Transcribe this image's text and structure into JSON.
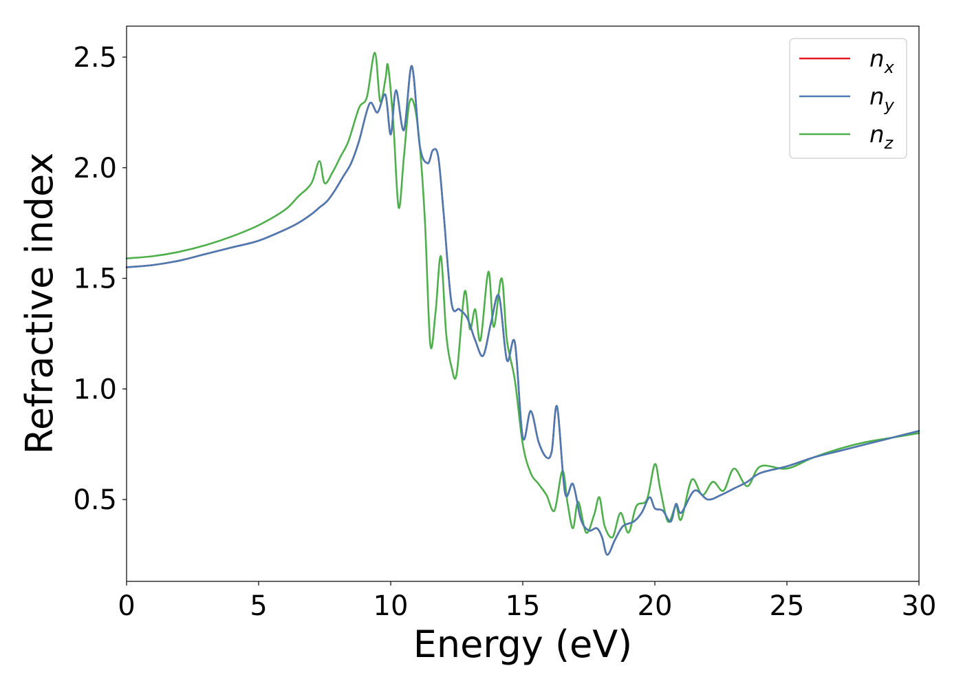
{
  "chart_data": {
    "type": "line",
    "title": "",
    "xlabel": "Energy (eV)",
    "ylabel": "Refractive index",
    "xlim": [
      0,
      30
    ],
    "ylim": [
      0.13,
      2.64
    ],
    "xticks": [
      0,
      5,
      10,
      15,
      20,
      25,
      30
    ],
    "xtick_labels": [
      "0",
      "5",
      "10",
      "15",
      "20",
      "25",
      "30"
    ],
    "yticks": [
      0.5,
      1.0,
      1.5,
      2.0,
      2.5
    ],
    "ytick_labels": [
      "0.5",
      "1.0",
      "1.5",
      "2.0",
      "2.5"
    ],
    "grid": false,
    "legend_position": "top-right",
    "series": [
      {
        "name": "n",
        "subscript": "x",
        "color": "#e41a1c",
        "x": [
          0,
          1,
          2,
          3,
          4,
          5,
          6,
          6.5,
          7,
          7.3,
          7.6,
          7.9,
          8.2,
          8.5,
          8.8,
          9.2,
          9.5,
          9.8,
          10.0,
          10.2,
          10.5,
          10.8,
          11.1,
          11.4,
          11.6,
          11.8,
          12.0,
          12.3,
          12.6,
          12.9,
          13.2,
          13.5,
          13.8,
          14.1,
          14.4,
          14.7,
          15.0,
          15.3,
          15.6,
          15.9,
          16.1,
          16.3,
          16.6,
          16.9,
          17.2,
          17.5,
          17.8,
          18.0,
          18.2,
          18.5,
          18.8,
          19.2,
          19.5,
          19.8,
          20.0,
          20.3,
          20.6,
          20.8,
          21.0,
          21.5,
          22.0,
          22.5,
          23.0,
          23.5,
          24.0,
          25.0,
          26.0,
          27.0,
          28.0,
          29.0,
          30.0
        ],
        "y": [
          1.55,
          1.56,
          1.58,
          1.61,
          1.64,
          1.67,
          1.72,
          1.75,
          1.79,
          1.82,
          1.85,
          1.9,
          1.96,
          2.02,
          2.12,
          2.29,
          2.25,
          2.33,
          2.15,
          2.35,
          2.17,
          2.46,
          2.1,
          2.02,
          2.08,
          2.05,
          1.8,
          1.39,
          1.36,
          1.32,
          1.22,
          1.15,
          1.3,
          1.42,
          1.13,
          1.21,
          0.78,
          0.9,
          0.76,
          0.69,
          0.72,
          0.92,
          0.53,
          0.57,
          0.41,
          0.36,
          0.37,
          0.33,
          0.25,
          0.32,
          0.38,
          0.4,
          0.44,
          0.51,
          0.46,
          0.45,
          0.4,
          0.48,
          0.44,
          0.54,
          0.5,
          0.52,
          0.55,
          0.58,
          0.62,
          0.65,
          0.69,
          0.72,
          0.75,
          0.78,
          0.81
        ]
      },
      {
        "name": "n",
        "subscript": "y",
        "color": "#4a7ab3",
        "x": [
          0,
          1,
          2,
          3,
          4,
          5,
          6,
          6.5,
          7,
          7.3,
          7.6,
          7.9,
          8.2,
          8.5,
          8.8,
          9.2,
          9.5,
          9.8,
          10.0,
          10.2,
          10.5,
          10.8,
          11.1,
          11.4,
          11.6,
          11.8,
          12.0,
          12.3,
          12.6,
          12.9,
          13.2,
          13.5,
          13.8,
          14.1,
          14.4,
          14.7,
          15.0,
          15.3,
          15.6,
          15.9,
          16.1,
          16.3,
          16.6,
          16.9,
          17.2,
          17.5,
          17.8,
          18.0,
          18.2,
          18.5,
          18.8,
          19.2,
          19.5,
          19.8,
          20.0,
          20.3,
          20.6,
          20.8,
          21.0,
          21.5,
          22.0,
          22.5,
          23.0,
          23.5,
          24.0,
          25.0,
          26.0,
          27.0,
          28.0,
          29.0,
          30.0
        ],
        "y": [
          1.55,
          1.56,
          1.58,
          1.61,
          1.64,
          1.67,
          1.72,
          1.75,
          1.79,
          1.82,
          1.85,
          1.9,
          1.96,
          2.02,
          2.12,
          2.29,
          2.25,
          2.33,
          2.15,
          2.35,
          2.17,
          2.46,
          2.1,
          2.02,
          2.08,
          2.05,
          1.8,
          1.39,
          1.36,
          1.32,
          1.22,
          1.15,
          1.3,
          1.42,
          1.13,
          1.21,
          0.78,
          0.9,
          0.76,
          0.69,
          0.72,
          0.92,
          0.53,
          0.57,
          0.41,
          0.36,
          0.37,
          0.33,
          0.25,
          0.32,
          0.38,
          0.4,
          0.44,
          0.51,
          0.46,
          0.45,
          0.4,
          0.48,
          0.44,
          0.54,
          0.5,
          0.52,
          0.55,
          0.58,
          0.62,
          0.65,
          0.69,
          0.72,
          0.75,
          0.78,
          0.81
        ]
      },
      {
        "name": "n",
        "subscript": "z",
        "color": "#4daf4a",
        "x": [
          0,
          1,
          2,
          3,
          4,
          5,
          6,
          6.5,
          7.0,
          7.3,
          7.5,
          7.8,
          8.1,
          8.4,
          8.8,
          9.1,
          9.4,
          9.6,
          9.8,
          9.9,
          10.1,
          10.3,
          10.5,
          10.7,
          10.9,
          11.1,
          11.3,
          11.5,
          11.7,
          11.9,
          12.1,
          12.3,
          12.5,
          12.8,
          13.0,
          13.2,
          13.4,
          13.7,
          13.9,
          14.2,
          14.4,
          14.7,
          15.0,
          15.3,
          15.6,
          15.9,
          16.2,
          16.5,
          16.7,
          16.9,
          17.1,
          17.4,
          17.7,
          17.9,
          18.1,
          18.4,
          18.7,
          19.0,
          19.3,
          19.7,
          20.0,
          20.2,
          20.5,
          20.8,
          21.0,
          21.4,
          21.8,
          22.2,
          22.6,
          23.0,
          23.5,
          24.0,
          25.0,
          26.0,
          27.0,
          28.0,
          29.0,
          30.0
        ],
        "y": [
          1.59,
          1.6,
          1.62,
          1.65,
          1.69,
          1.74,
          1.81,
          1.87,
          1.93,
          2.03,
          1.93,
          1.98,
          2.05,
          2.12,
          2.27,
          2.32,
          2.52,
          2.3,
          2.4,
          2.46,
          2.2,
          1.82,
          2.05,
          2.29,
          2.28,
          2.1,
          1.75,
          1.2,
          1.35,
          1.6,
          1.25,
          1.1,
          1.07,
          1.44,
          1.27,
          1.36,
          1.22,
          1.53,
          1.28,
          1.5,
          1.22,
          1.04,
          0.75,
          0.62,
          0.57,
          0.52,
          0.45,
          0.63,
          0.48,
          0.37,
          0.49,
          0.35,
          0.43,
          0.51,
          0.38,
          0.33,
          0.44,
          0.35,
          0.47,
          0.5,
          0.66,
          0.55,
          0.4,
          0.47,
          0.41,
          0.59,
          0.52,
          0.58,
          0.54,
          0.64,
          0.56,
          0.65,
          0.64,
          0.69,
          0.73,
          0.76,
          0.78,
          0.8
        ]
      }
    ]
  }
}
